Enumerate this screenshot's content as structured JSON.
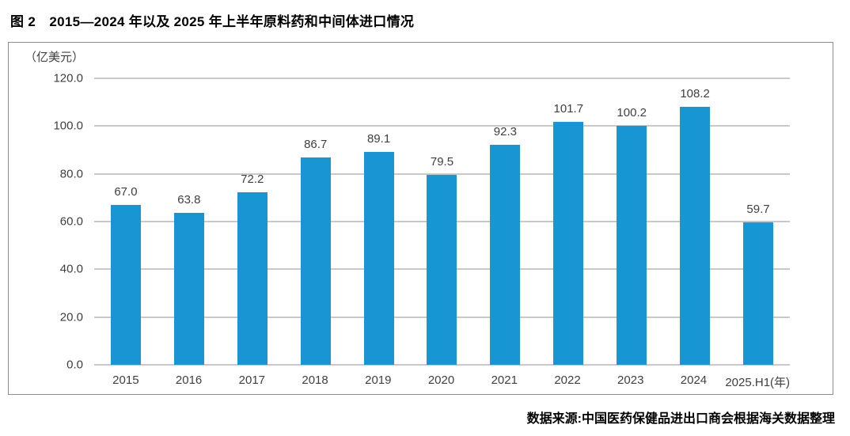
{
  "figure": {
    "title": "图 2　2015—2024 年以及 2025 年上半年原料药和中间体进口情况",
    "source": "数据来源:中国医药保健品进出口商会根据海关数据整理"
  },
  "chart_data": {
    "type": "bar",
    "title": "图 2　2015—2024 年以及 2025 年上半年原料药和中间体进口情况",
    "unit_label": "（亿美元）",
    "xlabel": "",
    "ylabel": "（亿美元）",
    "categories": [
      "2015",
      "2016",
      "2017",
      "2018",
      "2019",
      "2020",
      "2021",
      "2022",
      "2023",
      "2024",
      "2025.H1(年)"
    ],
    "values": [
      67.0,
      63.8,
      72.2,
      86.7,
      89.1,
      79.5,
      92.3,
      101.7,
      100.2,
      108.2,
      59.7
    ],
    "value_labels": [
      "67.0",
      "63.8",
      "72.2",
      "86.7",
      "89.1",
      "79.5",
      "92.3",
      "101.7",
      "100.2",
      "108.2",
      "59.7"
    ],
    "ylim": [
      0,
      120
    ],
    "ytick_step": 20,
    "ytick_labels": [
      "0.0",
      "20.0",
      "40.0",
      "60.0",
      "80.0",
      "100.0",
      "120.0"
    ],
    "grid": true,
    "legend": null,
    "bar_color": "#1796d3",
    "gridline_color": "#c9c9c9"
  }
}
